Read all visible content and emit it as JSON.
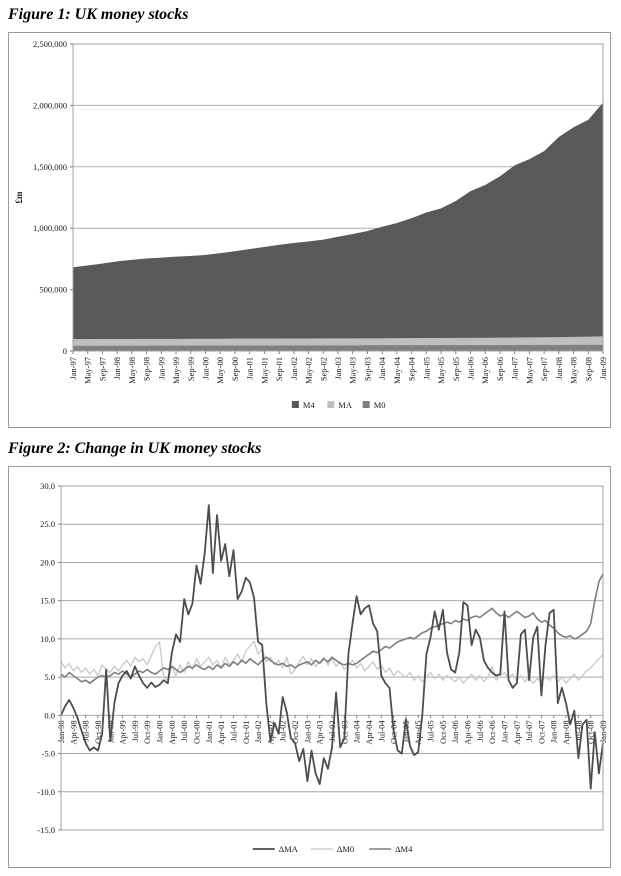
{
  "figure1": {
    "title": "Figure 1: UK money stocks"
  },
  "figure2": {
    "title": "Figure 2: Change in UK money stocks"
  },
  "chart_data": [
    {
      "id": "figure1",
      "type": "area",
      "title": "Figure 1: UK money stocks",
      "xlabel": "",
      "ylabel": "£m",
      "ylim": [
        0,
        2500000
      ],
      "ytick_step": 500000,
      "grid": true,
      "legend_position": "bottom",
      "categories": [
        "Jan-97",
        "May-97",
        "Sep-97",
        "Jan-98",
        "May-98",
        "Sep-98",
        "Jan-99",
        "May-99",
        "Sep-99",
        "Jan-00",
        "May-00",
        "Sep-00",
        "Jan-01",
        "May-01",
        "Sep-01",
        "Jan-02",
        "May-02",
        "Sep-02",
        "Jan-03",
        "May-03",
        "Sep-03",
        "Jan-04",
        "May-04",
        "Sep-04",
        "Jan-05",
        "May-05",
        "Sep-05",
        "Jan-06",
        "May-06",
        "Sep-06",
        "Jan-07",
        "May-07",
        "Sep-07",
        "Jan-08",
        "May-08",
        "Sep-08",
        "Jan-09"
      ],
      "series": [
        {
          "name": "M4",
          "color": "#595959",
          "values": [
            680000,
            695000,
            710000,
            728000,
            740000,
            752000,
            758000,
            766000,
            772000,
            780000,
            795000,
            810000,
            828000,
            845000,
            862000,
            878000,
            890000,
            905000,
            928000,
            950000,
            975000,
            1010000,
            1040000,
            1080000,
            1125000,
            1160000,
            1220000,
            1300000,
            1350000,
            1420000,
            1510000,
            1560000,
            1625000,
            1740000,
            1820000,
            1880000,
            2020000
          ]
        },
        {
          "name": "MA",
          "color": "#bfbfbf",
          "values": [
            95000,
            95000,
            96000,
            96000,
            96000,
            97000,
            97000,
            97000,
            98000,
            98000,
            98000,
            99000,
            99000,
            99000,
            100000,
            100000,
            100000,
            101000,
            101000,
            101000,
            102000,
            102000,
            103000,
            103000,
            104000,
            104000,
            105000,
            105000,
            106000,
            107000,
            108000,
            109000,
            110000,
            111000,
            113000,
            115000,
            118000
          ]
        },
        {
          "name": "M0",
          "color": "#808080",
          "values": [
            40000,
            40000,
            40000,
            41000,
            41000,
            41000,
            42000,
            42000,
            42000,
            42000,
            43000,
            43000,
            43000,
            43000,
            43000,
            44000,
            44000,
            44000,
            44000,
            44000,
            45000,
            45000,
            45000,
            45000,
            45000,
            46000,
            46000,
            46000,
            46000,
            46000,
            47000,
            47000,
            47000,
            47000,
            48000,
            48000,
            48000
          ]
        }
      ],
      "draw_order": [
        0,
        1,
        2
      ]
    },
    {
      "id": "figure2",
      "type": "line",
      "title": "Figure 2: Change in UK money stocks",
      "xlabel": "",
      "ylabel": "",
      "ylim": [
        -15,
        30
      ],
      "ytick_step": 5,
      "grid": true,
      "legend_position": "bottom",
      "points_per_tick": 3,
      "x_tick_labels": [
        "Jan-98",
        "Apr-98",
        "Jul-98",
        "Oct-98",
        "Jan-99",
        "Apr-99",
        "Jul-99",
        "Oct-99",
        "Jan-00",
        "Apr-00",
        "Jul-00",
        "Oct-00",
        "Jan-01",
        "Apr-01",
        "Jul-01",
        "Oct-01",
        "Jan-02",
        "Apr-02",
        "Jul-02",
        "Oct-02",
        "Jan-03",
        "Apr-03",
        "Jul-03",
        "Oct-03",
        "Jan-04",
        "Apr-04",
        "Jul-04",
        "Oct-04",
        "Jan-05",
        "Apr-05",
        "Jul-05",
        "Oct-05",
        "Jan-06",
        "Apr-06",
        "Jul-06",
        "Oct-06",
        "Jan-07",
        "Apr-07",
        "Jul-07",
        "Oct-07",
        "Jan-08",
        "Apr-08",
        "Jul-08",
        "Oct-08",
        "Jan-09"
      ],
      "series": [
        {
          "name": "ΔMA",
          "color": "#4d4d4d",
          "width": 1.8,
          "values": [
            0.0,
            1.2,
            2.0,
            1.0,
            -0.3,
            -2.0,
            -3.6,
            -4.6,
            -4.2,
            -4.6,
            -2.5,
            6.0,
            -3.4,
            1.6,
            4.2,
            5.2,
            5.8,
            4.8,
            6.4,
            5.2,
            4.2,
            3.6,
            4.3,
            3.7,
            4.0,
            4.6,
            4.2,
            8.2,
            10.6,
            9.6,
            15.2,
            13.2,
            14.6,
            19.6,
            17.2,
            21.2,
            27.5,
            18.6,
            26.2,
            20.2,
            22.4,
            18.2,
            21.6,
            15.2,
            16.2,
            18.0,
            17.4,
            15.4,
            9.6,
            9.2,
            1.6,
            -3.4,
            -1.0,
            -2.4,
            2.4,
            0.4,
            -3.0,
            -3.6,
            -6.0,
            -4.4,
            -8.6,
            -4.6,
            -7.6,
            -9.0,
            -5.6,
            -7.0,
            -4.2,
            3.0,
            -4.2,
            -3.0,
            8.0,
            12.0,
            15.6,
            13.2,
            14.0,
            14.4,
            12.0,
            11.0,
            5.2,
            4.2,
            3.6,
            -2.0,
            -4.6,
            -5.0,
            -0.5,
            -4.0,
            -5.2,
            -4.8,
            0.0,
            8.0,
            10.2,
            13.6,
            11.2,
            13.8,
            8.2,
            6.0,
            5.6,
            8.2,
            14.8,
            14.4,
            9.2,
            11.2,
            10.2,
            7.2,
            6.2,
            5.6,
            5.2,
            5.4,
            13.6,
            4.6,
            3.6,
            4.2,
            10.6,
            11.2,
            4.6,
            10.2,
            11.6,
            2.6,
            9.2,
            13.4,
            13.8,
            1.6,
            3.6,
            1.6,
            -1.2,
            0.6,
            -5.6,
            -1.2,
            -0.6,
            -9.6,
            -2.2,
            -7.6,
            -3.6
          ]
        },
        {
          "name": "ΔM0",
          "color": "#c8c8c8",
          "width": 1.3,
          "values": [
            7.0,
            6.2,
            6.8,
            5.8,
            6.4,
            5.6,
            6.2,
            5.4,
            6.0,
            5.2,
            6.6,
            6.0,
            5.6,
            6.4,
            5.8,
            6.6,
            7.2,
            6.4,
            7.6,
            7.0,
            7.4,
            6.6,
            7.8,
            9.0,
            9.6,
            5.0,
            4.6,
            6.4,
            5.2,
            6.6,
            5.6,
            7.0,
            6.0,
            7.4,
            6.4,
            7.0,
            7.6,
            6.6,
            7.2,
            6.2,
            7.6,
            6.6,
            7.2,
            8.0,
            7.0,
            8.4,
            9.0,
            9.7,
            8.0,
            8.6,
            7.0,
            7.6,
            6.6,
            7.2,
            6.2,
            7.6,
            5.4,
            6.0,
            7.0,
            7.7,
            6.6,
            7.4,
            6.4,
            7.0,
            7.6,
            6.6,
            7.4,
            6.4,
            7.0,
            6.0,
            6.6,
            7.2,
            6.2,
            6.8,
            5.8,
            6.4,
            7.0,
            6.0,
            6.6,
            5.6,
            6.2,
            5.2,
            5.8,
            5.4,
            5.0,
            5.6,
            4.6,
            5.2,
            4.4,
            5.0,
            5.6,
            4.8,
            5.4,
            4.6,
            5.2,
            4.8,
            4.4,
            5.0,
            4.2,
            4.8,
            5.4,
            4.6,
            5.2,
            4.4,
            5.0,
            6.4,
            4.6,
            5.2,
            5.6,
            4.8,
            5.4,
            4.6,
            5.2,
            4.4,
            5.0,
            4.2,
            4.8,
            4.4,
            5.0,
            4.6,
            5.2,
            4.4,
            5.0,
            4.2,
            4.8,
            5.4,
            4.6,
            5.2,
            5.8,
            6.2,
            6.8,
            7.4,
            8.0
          ]
        },
        {
          "name": "ΔM4",
          "color": "#7f7f7f",
          "width": 1.6,
          "values": [
            5.4,
            5.0,
            5.6,
            5.2,
            4.8,
            4.4,
            4.6,
            4.2,
            4.6,
            5.0,
            5.2,
            5.0,
            5.2,
            5.6,
            5.4,
            5.8,
            5.4,
            5.0,
            5.4,
            5.8,
            5.6,
            6.0,
            5.6,
            5.4,
            5.8,
            6.2,
            6.0,
            6.4,
            6.0,
            5.6,
            6.0,
            6.4,
            6.2,
            6.6,
            6.2,
            6.0,
            6.4,
            6.0,
            6.6,
            6.2,
            6.8,
            6.4,
            7.0,
            6.6,
            7.2,
            6.8,
            7.4,
            7.0,
            6.6,
            7.2,
            7.6,
            7.2,
            6.8,
            6.6,
            6.8,
            6.4,
            6.6,
            6.2,
            6.6,
            6.8,
            7.0,
            6.6,
            7.2,
            6.8,
            7.4,
            7.0,
            7.6,
            7.2,
            6.8,
            6.6,
            6.8,
            6.6,
            6.8,
            7.2,
            7.6,
            8.0,
            8.4,
            8.2,
            8.6,
            9.0,
            8.8,
            9.2,
            9.6,
            9.8,
            10.0,
            10.2,
            10.0,
            10.4,
            10.8,
            11.0,
            11.4,
            11.6,
            11.8,
            12.0,
            12.2,
            12.0,
            12.4,
            12.2,
            12.6,
            12.4,
            12.8,
            13.0,
            12.8,
            13.2,
            13.6,
            14.0,
            13.4,
            13.0,
            13.2,
            12.8,
            13.2,
            13.6,
            13.2,
            12.8,
            13.0,
            13.4,
            12.6,
            12.2,
            12.4,
            11.8,
            11.4,
            10.8,
            10.4,
            10.2,
            10.4,
            10.0,
            10.2,
            10.6,
            11.0,
            12.0,
            15.0,
            17.5,
            18.5
          ]
        }
      ],
      "draw_order": [
        1,
        2,
        0
      ]
    }
  ]
}
